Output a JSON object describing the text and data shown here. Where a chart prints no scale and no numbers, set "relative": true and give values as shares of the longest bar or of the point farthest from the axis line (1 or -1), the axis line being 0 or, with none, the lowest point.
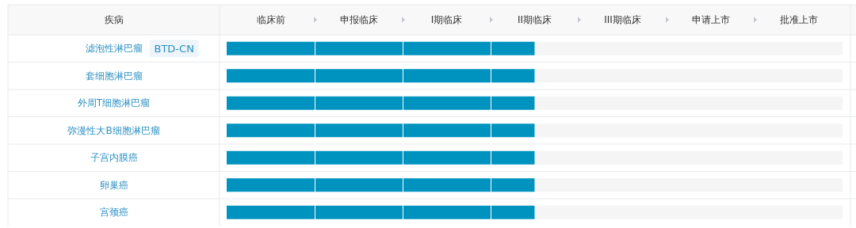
{
  "chart_data": {
    "type": "bar",
    "orientation": "horizontal",
    "stacked": true,
    "relative": true,
    "ylabel": "疾病",
    "categories": [
      "滤泡性淋巴瘤",
      "套细胞淋巴瘤",
      "外周T细胞淋巴瘤",
      "弥漫性大B细胞淋巴瘤",
      "子宫内膜癌",
      "卵巢癌",
      "宫颈癌"
    ],
    "series": [
      {
        "color": "#0093bf",
        "values": [
          0.2857,
          0.2857,
          0.2857,
          0.2857,
          0.2857,
          0.2857,
          0.2857
        ]
      },
      {
        "color": "#0093bf",
        "values": [
          0.2857,
          0.2857,
          0.2857,
          0.2857,
          0.2857,
          0.2857,
          0.2857
        ]
      },
      {
        "color": "#0093bf",
        "values": [
          0.2857,
          0.2857,
          0.2857,
          0.2857,
          0.2857,
          0.2857,
          0.2857
        ]
      },
      {
        "color": "#0093bf",
        "values": [
          0.1429,
          0.1429,
          0.1429,
          0.1429,
          0.1429,
          0.1429,
          0.1429
        ]
      }
    ],
    "annotations": [
      "临床前",
      "申报临床",
      "I期临床",
      "II期临床",
      "III期临床",
      "申请上市",
      "批准上市",
      "BTD-CN"
    ]
  }
}
